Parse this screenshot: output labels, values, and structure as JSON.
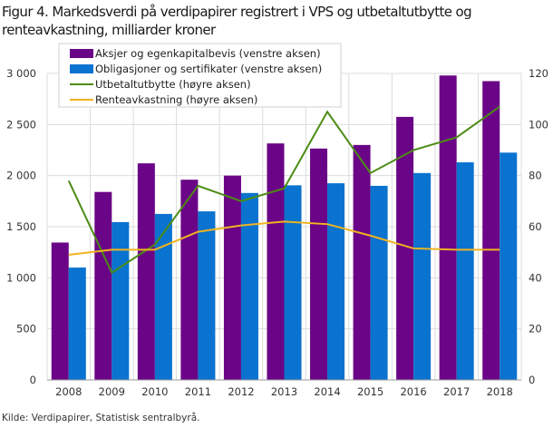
{
  "chart_data": {
    "type": "bar",
    "title": "Figur 4. Markedsverdi på verdipapirer registrert i VPS og utbetaltutbytte og renteavkastning, milliarder kroner",
    "source": "Kilde: Verdipapirer, Statistisk sentralbyrå.",
    "categories": [
      "2008",
      "2009",
      "2010",
      "2011",
      "2012",
      "2013",
      "2014",
      "2015",
      "2016",
      "2017",
      "2018"
    ],
    "left_axis": {
      "range": [
        0,
        3000
      ],
      "ticks": [
        "0",
        "500",
        "1 000",
        "1 500",
        "2 000",
        "2 500",
        "3 000"
      ],
      "values": [
        0,
        500,
        1000,
        1500,
        2000,
        2500,
        3000
      ]
    },
    "right_axis": {
      "range": [
        0,
        120
      ],
      "ticks": [
        "0",
        "20",
        "40",
        "60",
        "80",
        "100",
        "120"
      ],
      "values": [
        0,
        20,
        40,
        60,
        80,
        100,
        120
      ]
    },
    "grid": true,
    "legend_placement": "top-left",
    "series": [
      {
        "name": "Aksjer og egenkapitalbevis (venstre aksen)",
        "kind": "bar",
        "axis": "left",
        "color": "#6a0587",
        "values": [
          1345,
          1840,
          2120,
          1960,
          2000,
          2315,
          2265,
          2300,
          2575,
          2980,
          2925
        ]
      },
      {
        "name": "Obligasjoner og sertifikater (venstre aksen)",
        "kind": "bar",
        "axis": "left",
        "color": "#0a73cf",
        "values": [
          1100,
          1545,
          1625,
          1650,
          1830,
          1905,
          1925,
          1900,
          2025,
          2130,
          2225
        ]
      },
      {
        "name": "Utbetaltutbytte (høyre aksen)",
        "kind": "line",
        "axis": "right",
        "color": "#4c8c14",
        "values": [
          78,
          42,
          53,
          76,
          70,
          75,
          105,
          81,
          90,
          95,
          107
        ]
      },
      {
        "name": "Renteavkastning (høyre aksen)",
        "kind": "line",
        "axis": "right",
        "color": "#f0b320",
        "values": [
          49,
          51,
          51,
          58,
          60.5,
          62,
          61,
          56.5,
          51.5,
          51,
          51
        ]
      }
    ]
  }
}
